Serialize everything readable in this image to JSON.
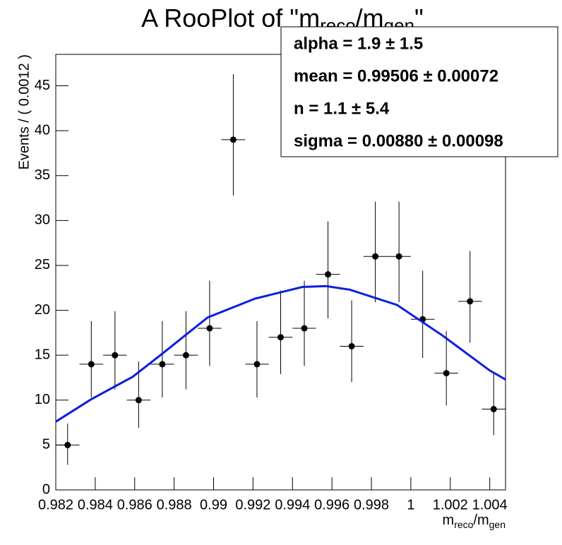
{
  "chart_data": {
    "type": "scatter",
    "title_parts": [
      "A RooPlot of \"m",
      "reco",
      "/m",
      "gen",
      "\""
    ],
    "x_label_parts": [
      "m",
      "reco",
      "/m",
      "gen"
    ],
    "y_label": "Events / ( 0.0012 )",
    "xlim": [
      0.982,
      1.0048
    ],
    "ylim": [
      0,
      48.5
    ],
    "xticks": [
      0.982,
      0.984,
      0.986,
      0.988,
      0.99,
      0.992,
      0.994,
      0.996,
      0.998,
      1,
      1.002,
      1.004
    ],
    "yticks": [
      0,
      5,
      10,
      15,
      20,
      25,
      30,
      35,
      40,
      45
    ],
    "series": [
      {
        "kind": "points",
        "color": "#000000",
        "x": [
          0.9826,
          0.9838,
          0.985,
          0.9862,
          0.9874,
          0.9886,
          0.9898,
          0.991,
          0.9922,
          0.9934,
          0.9946,
          0.9958,
          0.997,
          0.9982,
          0.9994,
          1.0006,
          1.0018,
          1.003,
          1.0042
        ],
        "values": [
          5,
          14,
          15,
          10,
          14,
          15,
          18,
          39,
          14,
          17,
          18,
          24,
          16,
          26,
          26,
          19,
          13,
          21,
          9
        ],
        "err_low": [
          2.2,
          3.7,
          3.8,
          3.1,
          3.7,
          3.8,
          4.2,
          6.2,
          3.7,
          4.1,
          4.2,
          4.9,
          4.0,
          5.1,
          5.1,
          4.3,
          3.6,
          4.6,
          2.9
        ],
        "err_high": [
          2.4,
          4.8,
          4.9,
          4.3,
          4.8,
          4.9,
          5.3,
          7.3,
          4.8,
          5.2,
          5.3,
          5.9,
          5.1,
          6.1,
          6.1,
          5.4,
          4.7,
          5.6,
          4.1
        ]
      },
      {
        "kind": "line",
        "color": "#0a1ee0",
        "x": [
          0.982,
          0.9838,
          0.9859,
          0.9873,
          0.9897,
          0.9921,
          0.9945,
          0.9957,
          0.9969,
          0.9993,
          1.0016,
          1.004,
          1.0048
        ],
        "values": [
          7.6,
          10.1,
          12.6,
          15.0,
          19.2,
          21.3,
          22.6,
          22.7,
          22.3,
          20.6,
          17.2,
          13.3,
          12.3
        ]
      }
    ],
    "stats": [
      "alpha =  1.9  ± 1.5",
      "mean =  0.99506  ± 0.00072",
      "n =  1.1 ± 5.4",
      "sigma =  0.00880  ± 0.00098"
    ]
  }
}
